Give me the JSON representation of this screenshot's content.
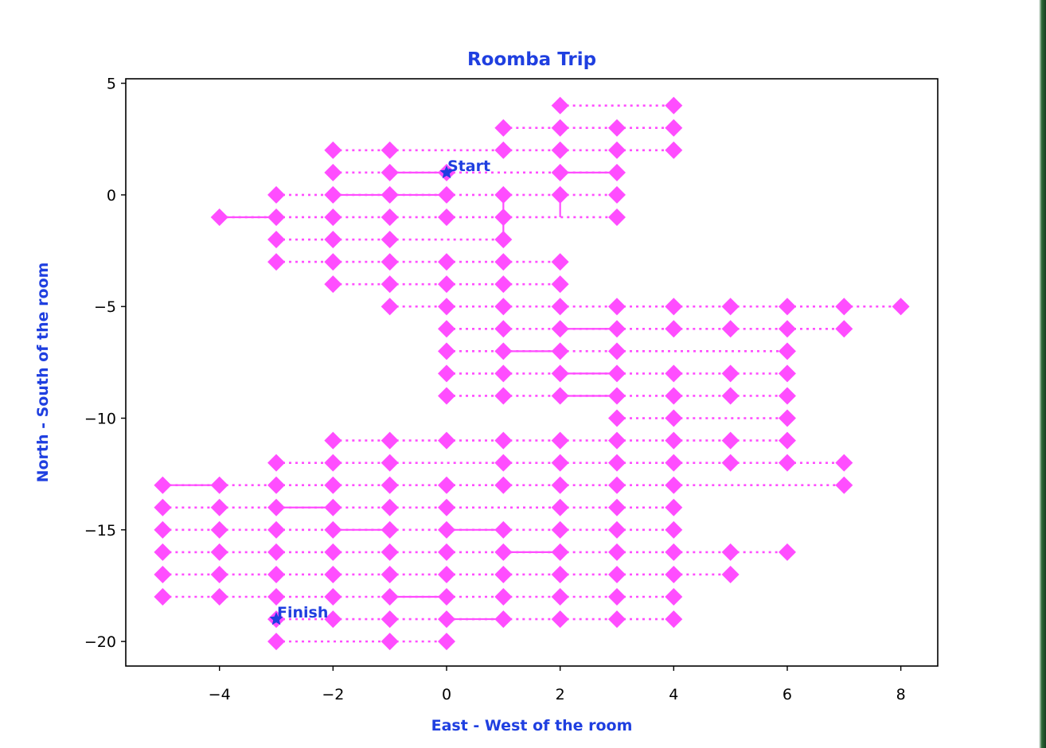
{
  "chart_data": {
    "type": "scatter",
    "title": "Roomba Trip",
    "xlabel": "East - West of the room",
    "ylabel": "North - South of the room",
    "xlim": [
      -5.65,
      8.65
    ],
    "ylim": [
      -21.1,
      5.2
    ],
    "xticks": [
      -4,
      -2,
      0,
      2,
      4,
      6,
      8
    ],
    "yticks": [
      5,
      0,
      -5,
      -10,
      -15,
      -20
    ],
    "xtick_labels": [
      "−4",
      "−2",
      "0",
      "2",
      "4",
      "6",
      "8"
    ],
    "ytick_labels": [
      "5",
      "0",
      "−5",
      "−10",
      "−15",
      "−20"
    ],
    "grid": false,
    "colors": {
      "text": "#1f3fe0",
      "marker": "#ff4dff",
      "line": "#ff4dff",
      "axis": "#000000"
    },
    "marker": "diamond",
    "points": {
      "4": [
        2,
        4
      ],
      "3": [
        1,
        2,
        3,
        4
      ],
      "2": [
        -2,
        -1,
        1,
        2,
        3,
        4
      ],
      "1": [
        -2,
        -1,
        0,
        2,
        3
      ],
      "0": [
        -3,
        -2,
        -1,
        0,
        1,
        2,
        3
      ],
      "-1": [
        -4,
        -3,
        -2,
        -1,
        0,
        1,
        3
      ],
      "-2": [
        -3,
        -2,
        -1,
        1
      ],
      "-3": [
        -3,
        -2,
        -1,
        0,
        1,
        2
      ],
      "-4": [
        -2,
        -1,
        0,
        1,
        2
      ],
      "-5": [
        -1,
        0,
        1,
        2,
        3,
        4,
        5,
        6,
        7,
        8
      ],
      "-6": [
        0,
        1,
        2,
        3,
        4,
        5,
        6,
        7
      ],
      "-7": [
        0,
        1,
        2,
        3,
        6
      ],
      "-8": [
        0,
        1,
        2,
        3,
        4,
        5,
        6
      ],
      "-9": [
        0,
        1,
        2,
        3,
        4,
        5,
        6
      ],
      "-10": [
        3,
        4,
        6
      ],
      "-11": [
        -2,
        -1,
        0,
        1,
        2,
        3,
        4,
        5,
        6
      ],
      "-12": [
        -3,
        -2,
        -1,
        1,
        2,
        3,
        4,
        5,
        6,
        7
      ],
      "-13": [
        -5,
        -4,
        -3,
        -2,
        -1,
        0,
        1,
        2,
        3,
        4,
        7
      ],
      "-14": [
        -5,
        -4,
        -3,
        -2,
        -1,
        0,
        2,
        3,
        4
      ],
      "-15": [
        -5,
        -4,
        -3,
        -2,
        -1,
        0,
        1,
        2,
        3,
        4
      ],
      "-16": [
        -5,
        -4,
        -3,
        -2,
        -1,
        0,
        1,
        2,
        3,
        4,
        5,
        6
      ],
      "-17": [
        -5,
        -4,
        -3,
        -2,
        -1,
        0,
        1,
        2,
        3,
        4,
        5
      ],
      "-18": [
        -5,
        -4,
        -3,
        -2,
        -1,
        0,
        1,
        2,
        3,
        4
      ],
      "-19": [
        -3,
        -2,
        -1,
        0,
        1,
        2,
        3,
        4
      ],
      "-20": [
        -3,
        -1,
        0
      ]
    },
    "solid_segments": [
      [
        -4,
        -1,
        -3,
        -1
      ],
      [
        -1,
        1,
        0,
        1
      ],
      [
        -2,
        0,
        0,
        0
      ],
      [
        1,
        -7,
        2,
        -7
      ],
      [
        -5,
        -13,
        -4,
        -13
      ],
      [
        -3,
        -14,
        -2,
        -14
      ],
      [
        -2,
        -15,
        -1,
        -15
      ],
      [
        0,
        -15,
        1,
        -15
      ],
      [
        2,
        -1,
        2,
        0
      ],
      [
        1,
        -2,
        1,
        0
      ],
      [
        2,
        1,
        3,
        1
      ],
      [
        2,
        -6,
        3,
        -6
      ],
      [
        2,
        -8,
        3,
        -8
      ],
      [
        2,
        -9,
        3,
        -9
      ],
      [
        -1,
        -18,
        0,
        -18
      ],
      [
        0,
        -19,
        1,
        -19
      ],
      [
        1,
        -16,
        2,
        -16
      ]
    ],
    "annotations": [
      {
        "text": "Start",
        "x": 0,
        "y": 1
      },
      {
        "text": "Finish",
        "x": -3,
        "y": -19
      }
    ]
  }
}
